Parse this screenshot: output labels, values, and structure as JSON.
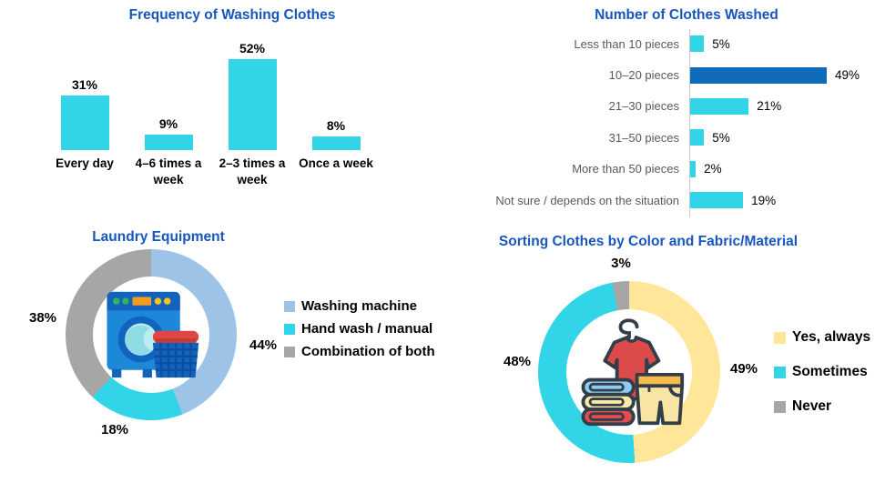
{
  "page": {
    "background": "#FFFFFF",
    "title_color": "#1656BE"
  },
  "chart_data": [
    {
      "type": "bar",
      "orientation": "vertical",
      "title": "Frequency of Washing Clothes",
      "categories": [
        "Every day",
        "4–6 times a week",
        "2–3 times a week",
        "Once a week"
      ],
      "values": [
        31,
        9,
        52,
        8
      ],
      "unit": "%",
      "value_labels": [
        "31%",
        "9%",
        "52%",
        "8%"
      ],
      "bar_color": "#31D5E7",
      "ylim": [
        0,
        60
      ],
      "grid": false,
      "value_axis_hidden": true
    },
    {
      "type": "bar",
      "orientation": "horizontal",
      "title": "Number of Clothes Washed",
      "categories": [
        "Less than 10 pieces",
        "10–20 pieces",
        "21–30 pieces",
        "31–50 pieces",
        "More than 50 pieces",
        "Not sure / depends on the situation"
      ],
      "values": [
        5,
        49,
        21,
        5,
        2,
        19
      ],
      "unit": "%",
      "value_labels": [
        "5%",
        "49%",
        "21%",
        "5%",
        "2%",
        "19%"
      ],
      "colors": [
        "#31D5E7",
        "#106BB8",
        "#31D5E7",
        "#31D5E7",
        "#31D5E7",
        "#31D5E7"
      ],
      "highlight_index": 1,
      "category_label_color": "#595959",
      "xlim": [
        0,
        55
      ],
      "grid": false,
      "value_axis_hidden": true
    },
    {
      "type": "pie",
      "subtype": "donut",
      "title": "Laundry Equipment",
      "legend": [
        "Washing machine",
        "Hand wash / manual",
        "Combination of both"
      ],
      "values": [
        44,
        18,
        38
      ],
      "unit": "%",
      "value_labels": [
        "44%",
        "18%",
        "38%"
      ],
      "colors": [
        "#9DC3E6",
        "#31D5E7",
        "#A6A6A6"
      ],
      "legend_position": "right",
      "center_icon": "washing-machine-and-basket",
      "start_angle_deg": 0,
      "direction": "clockwise"
    },
    {
      "type": "pie",
      "subtype": "donut",
      "title": "Sorting Clothes by Color and Fabric/Material",
      "legend": [
        "Yes, always",
        "Sometimes",
        "Never"
      ],
      "values": [
        49,
        48,
        3
      ],
      "unit": "%",
      "value_labels": [
        "49%",
        "48%",
        "3%"
      ],
      "colors": [
        "#FFE699",
        "#31D5E7",
        "#A6A6A6"
      ],
      "legend_position": "right",
      "center_icon": "hanger-shirt-shorts-towels",
      "start_angle_deg": 0,
      "direction": "clockwise"
    }
  ]
}
